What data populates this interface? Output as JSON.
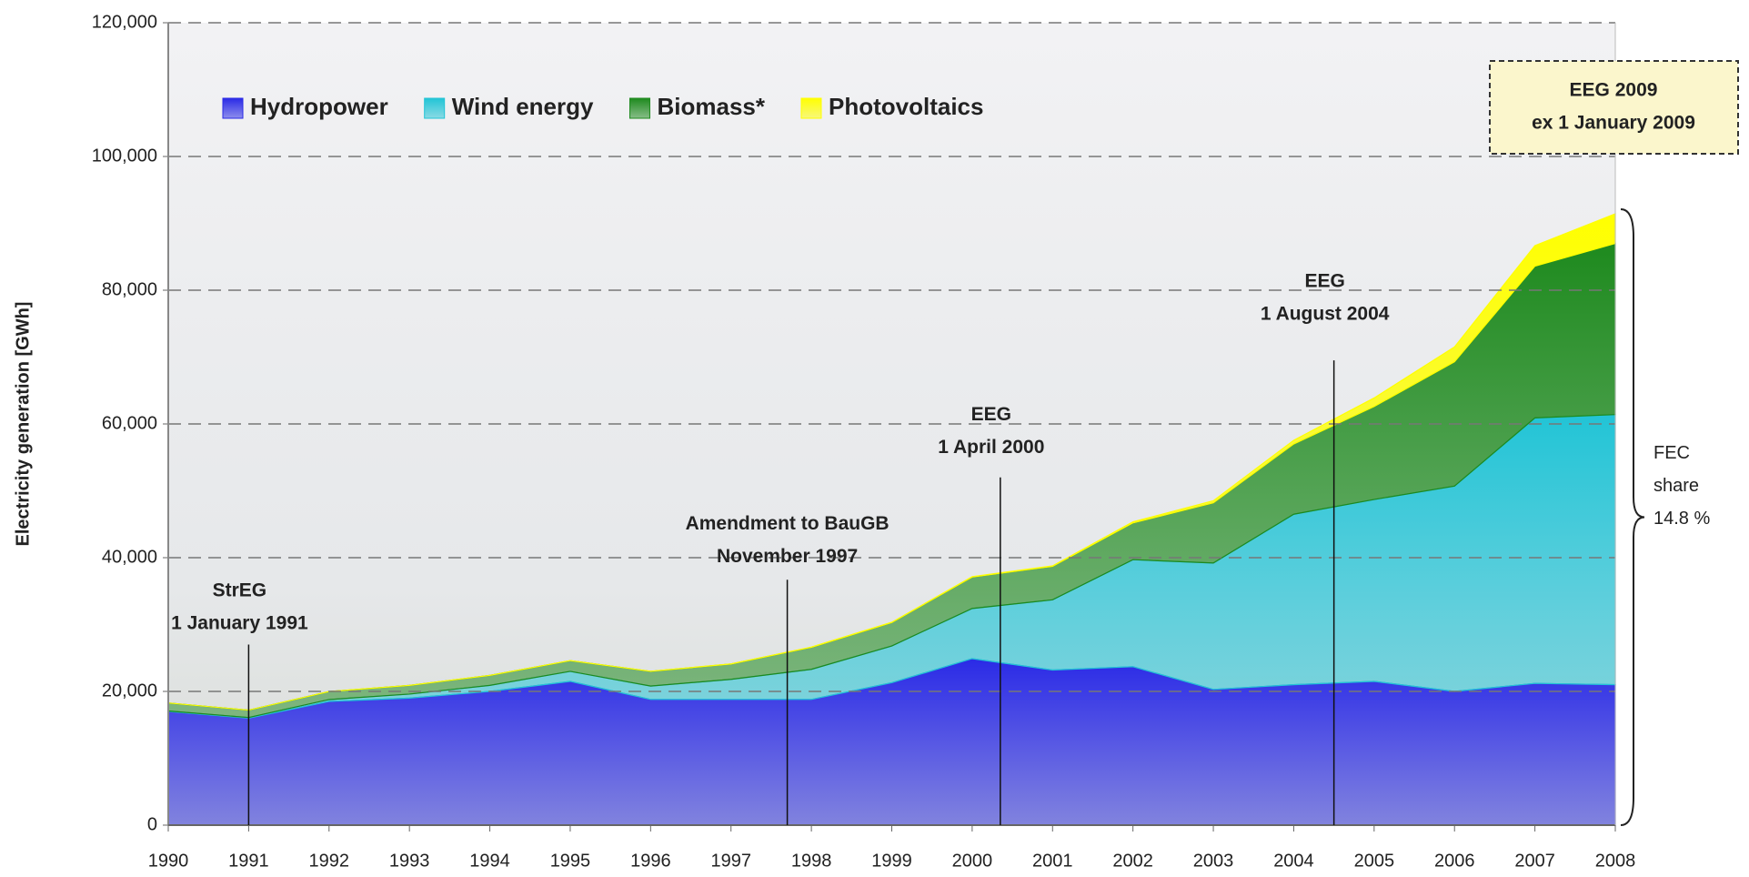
{
  "chart_data": {
    "type": "stacked_area",
    "y_label": "Electricity generation [GWh]",
    "x": [
      1990,
      1991,
      1992,
      1993,
      1994,
      1995,
      1996,
      1997,
      1998,
      1999,
      2000,
      2001,
      2002,
      2003,
      2004,
      2005,
      2006,
      2007,
      2008
    ],
    "xlim": [
      1990,
      2008
    ],
    "xticks": [
      1990,
      1991,
      1992,
      1993,
      1994,
      1995,
      1996,
      1997,
      1998,
      1999,
      2000,
      2001,
      2002,
      2003,
      2004,
      2005,
      2006,
      2007,
      2008
    ],
    "ylim": [
      0,
      120000
    ],
    "yticks": [
      0,
      {
        "value": 20000,
        "label": "20,000"
      },
      {
        "value": 40000,
        "label": "40,000"
      },
      {
        "value": 60000,
        "label": "60,000"
      },
      {
        "value": 80000,
        "label": "80,000"
      },
      {
        "value": 100000,
        "label": "100,000"
      },
      {
        "value": 120000,
        "label": "120,000"
      }
    ],
    "grid": true,
    "legend": "upper left",
    "series": [
      {
        "name": "Hydropower",
        "color": "#2a2ae6",
        "values": [
          17000,
          16000,
          18500,
          19000,
          20000,
          21500,
          18800,
          18800,
          18800,
          21300,
          24900,
          23200,
          23700,
          20300,
          21000,
          21500,
          20000,
          21200,
          21000
        ]
      },
      {
        "name": "Wind energy",
        "color": "#22c4d6",
        "values": [
          70,
          100,
          280,
          600,
          900,
          1500,
          2000,
          3000,
          4500,
          5500,
          7500,
          10500,
          16000,
          18900,
          25500,
          27200,
          30700,
          39700,
          40400
        ]
      },
      {
        "name": "Biomass*",
        "color": "#1e8a1e",
        "values": [
          1200,
          1100,
          1200,
          1300,
          1500,
          1600,
          2200,
          2300,
          3300,
          3500,
          4700,
          5000,
          5500,
          9000,
          10500,
          13900,
          18600,
          22700,
          25600
        ]
      },
      {
        "name": "Photovoltaics",
        "color": "#ffff00",
        "values": [
          1,
          2,
          3,
          6,
          8,
          11,
          16,
          26,
          32,
          42,
          64,
          76,
          162,
          313,
          557,
          1282,
          2220,
          3075,
          4420
        ]
      }
    ],
    "annotations": [
      [
        "StrEG",
        "1 January 1991"
      ],
      [
        "Amendment to BauGB",
        "November 1997"
      ],
      [
        "EEG",
        "1  April 2000"
      ],
      [
        "EEG",
        "1 August  2004"
      ]
    ],
    "box_note": [
      "EEG 2009",
      "ex 1 January 2009"
    ],
    "side_note": [
      "FEC",
      "share",
      "14.8 %"
    ]
  }
}
